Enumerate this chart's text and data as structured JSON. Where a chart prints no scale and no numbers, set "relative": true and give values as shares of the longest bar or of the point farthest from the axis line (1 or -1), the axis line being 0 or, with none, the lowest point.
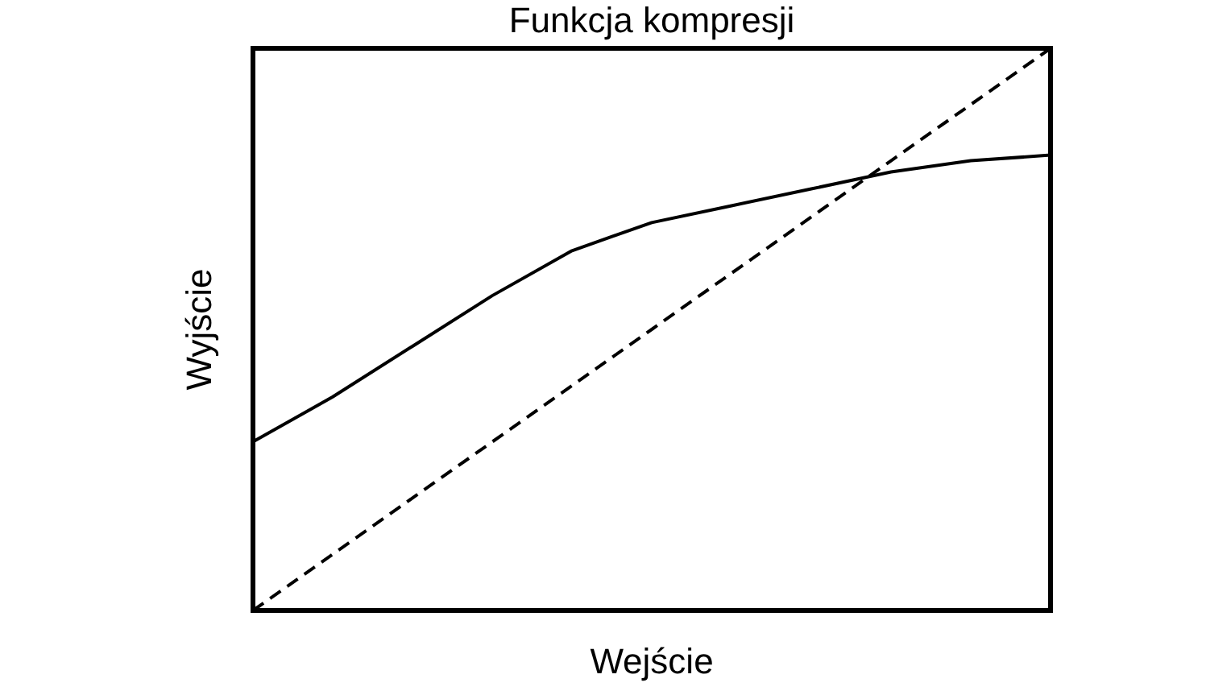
{
  "chart_data": {
    "type": "line",
    "title": "Funkcja kompresji",
    "xlabel": "Wejście",
    "ylabel": "Wyjście",
    "relative": true,
    "categories": [
      null,
      null,
      null,
      null,
      null,
      null,
      null,
      null,
      null,
      null,
      null
    ],
    "series": [
      {
        "color": "#000000",
        "line_style": "solid",
        "values": [
          0.3,
          0.38,
          0.47,
          0.56,
          0.64,
          0.69,
          0.72,
          0.75,
          0.78,
          0.8,
          0.81
        ]
      },
      {
        "color": "#000000",
        "line_style": "dashed",
        "values": [
          0,
          0.1,
          0.2,
          0.3,
          0.4,
          0.5,
          0.6,
          0.7,
          0.8,
          0.9,
          1
        ]
      }
    ]
  }
}
